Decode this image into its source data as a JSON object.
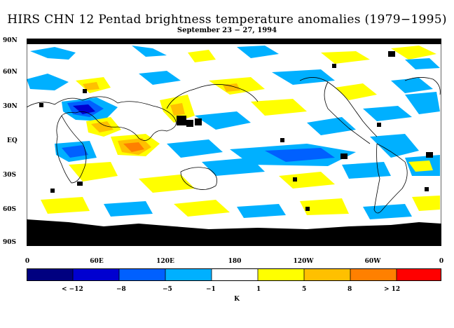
{
  "title": "HIRS CHN 12 Pentad brightness temperature anomalies (1979−1995)",
  "subtitle": "September 23 − 27, 1994",
  "lat_labels": [
    "90N",
    "60N",
    "30N",
    "EQ",
    "30S",
    "60S",
    "90S"
  ],
  "lon_labels": [
    "0",
    "60E",
    "120E",
    "180",
    "120W",
    "60W",
    "0"
  ],
  "colorbar": {
    "colors": [
      "#000080",
      "#0000d0",
      "#0060ff",
      "#00b0ff",
      "#ffffff",
      "#ffff00",
      "#ffc000",
      "#ff8000",
      "#ff0000"
    ],
    "labels": [
      "< −12",
      "−8",
      "−5",
      "−1",
      "1",
      "5",
      "8",
      "> 12"
    ],
    "unit": "K"
  }
}
